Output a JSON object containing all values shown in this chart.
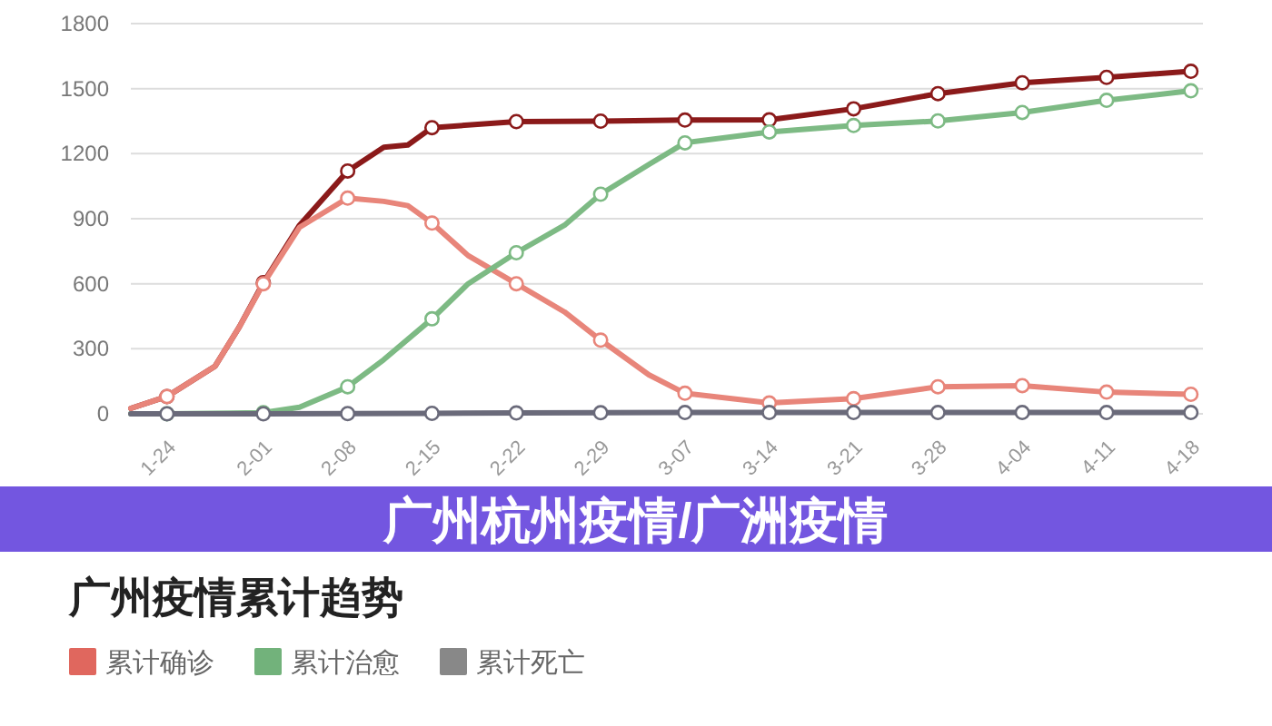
{
  "chart_data": [
    {
      "type": "line",
      "title": "广州杭州疫情/广洲疫情",
      "xlim": [
        "--01-21",
        "--04-19"
      ],
      "xticks": [
        {
          "value": "--01-24",
          "label": "1-24"
        },
        {
          "value": "--02-01",
          "label": "2-01"
        },
        {
          "value": "--02-08",
          "label": "2-08"
        },
        {
          "value": "--02-15",
          "label": "2-15"
        },
        {
          "value": "--02-22",
          "label": "2-22"
        },
        {
          "value": "--02-29",
          "label": "2-29"
        },
        {
          "value": "--03-07",
          "label": "3-07"
        },
        {
          "value": "--03-14",
          "label": "3-14"
        },
        {
          "value": "--03-21",
          "label": "3-21"
        },
        {
          "value": "--03-28",
          "label": "3-28"
        },
        {
          "value": "--04-04",
          "label": "4-04"
        },
        {
          "value": "--04-11",
          "label": "4-11"
        },
        {
          "value": "--04-18",
          "label": "4-18"
        }
      ],
      "ylim": [
        0,
        1800
      ],
      "yticks": [
        0,
        300,
        600,
        900,
        1200,
        1500,
        1800
      ],
      "grid": "y",
      "marker": "circle",
      "line_style": "solid",
      "series": [
        {
          "color": "#8b1a1a",
          "x": [
            "--01-21",
            "--01-24",
            "--01-28",
            "--01-30",
            "--02-01",
            "--02-04",
            "--02-08",
            "--02-11",
            "--02-13",
            "--02-15",
            "--02-22",
            "--02-29",
            "--03-07",
            "--03-14",
            "--03-21",
            "--03-28",
            "--04-04",
            "--04-11",
            "--04-18"
          ],
          "values": [
            25,
            80,
            220,
            400,
            605,
            870,
            1120,
            1230,
            1240,
            1320,
            1348,
            1350,
            1355,
            1356,
            1407,
            1477,
            1527,
            1552,
            1580
          ]
        },
        {
          "color": "#e8857a",
          "x": [
            "--01-21",
            "--01-24",
            "--01-28",
            "--01-30",
            "--02-01",
            "--02-04",
            "--02-08",
            "--02-11",
            "--02-13",
            "--02-15",
            "--02-18",
            "--02-22",
            "--02-26",
            "--02-29",
            "--03-04",
            "--03-07",
            "--03-14",
            "--03-21",
            "--03-28",
            "--04-04",
            "--04-11",
            "--04-18"
          ],
          "values": [
            25,
            80,
            220,
            400,
            600,
            860,
            995,
            980,
            960,
            880,
            730,
            600,
            470,
            340,
            180,
            95,
            50,
            70,
            125,
            130,
            100,
            90
          ]
        },
        {
          "color": "#7dba84",
          "x": [
            "--01-21",
            "--01-24",
            "--02-01",
            "--02-04",
            "--02-08",
            "--02-11",
            "--02-15",
            "--02-18",
            "--02-22",
            "--02-26",
            "--02-29",
            "--03-04",
            "--03-07",
            "--03-14",
            "--03-21",
            "--03-28",
            "--04-04",
            "--04-11",
            "--04-18"
          ],
          "values": [
            0,
            0,
            5,
            30,
            125,
            250,
            438,
            600,
            743,
            870,
            1013,
            1150,
            1250,
            1300,
            1330,
            1351,
            1390,
            1446,
            1490
          ]
        },
        {
          "color": "#6a6a7a",
          "x": [
            "--01-21",
            "--01-24",
            "--02-01",
            "--02-08",
            "--02-15",
            "--02-22",
            "--02-29",
            "--03-07",
            "--03-14",
            "--03-21",
            "--03-28",
            "--04-04",
            "--04-11",
            "--04-18"
          ],
          "values": [
            0,
            0,
            0,
            1,
            2,
            4,
            5,
            6,
            6,
            6,
            6,
            6,
            6,
            6
          ]
        }
      ]
    },
    {
      "type": "other",
      "title": "广州疫情累计趋势",
      "legend": "top left",
      "series": [
        {
          "name": "累计确诊",
          "color": "#e0675e"
        },
        {
          "name": "累计治愈",
          "color": "#72b27b"
        },
        {
          "name": "累计死亡",
          "color": "#888888"
        }
      ]
    }
  ]
}
